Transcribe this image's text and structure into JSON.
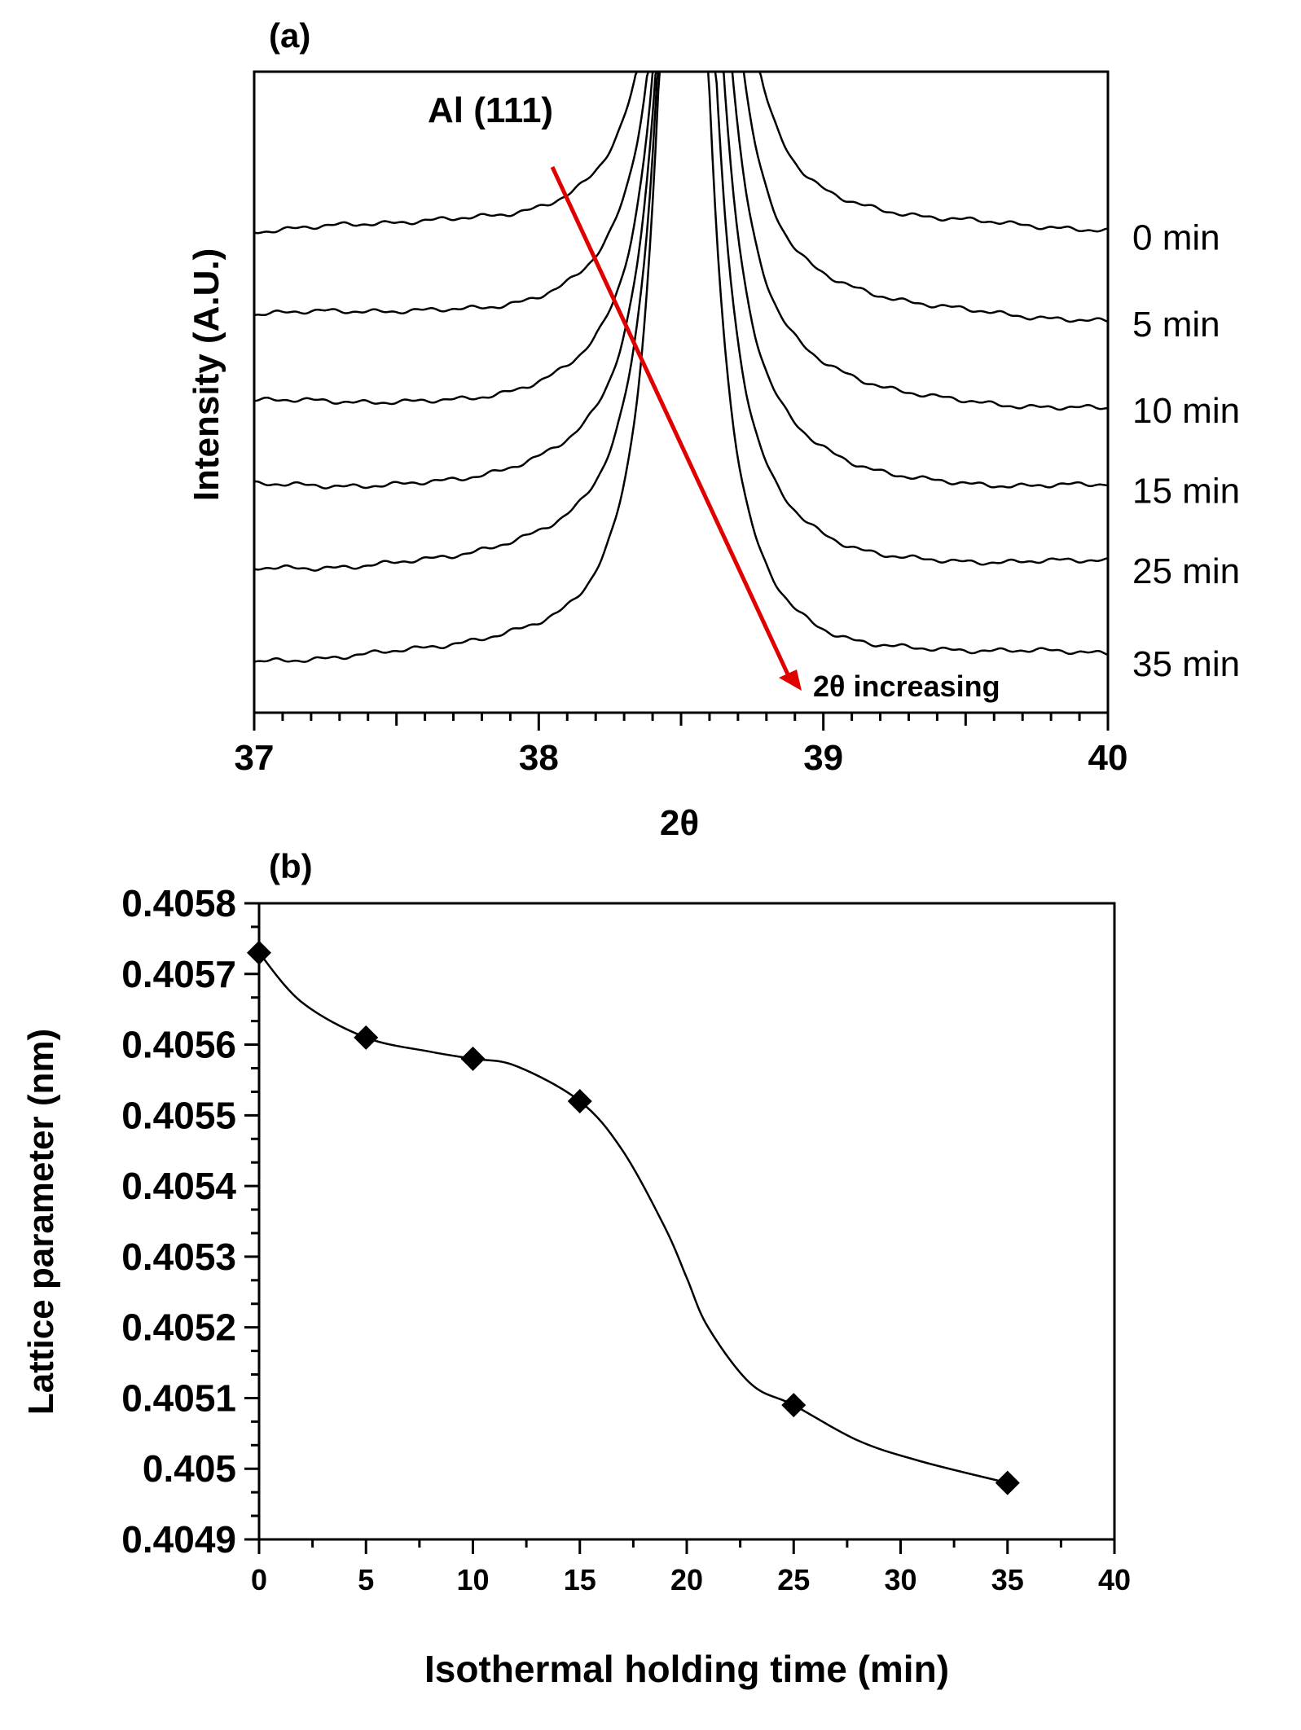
{
  "chart_data": [
    {
      "type": "line",
      "panel_label": "(a)",
      "title": "",
      "xlabel": "2θ",
      "ylabel": "Intensity (A.U.)",
      "xlim": [
        37,
        40
      ],
      "x_ticks": [
        "37",
        "38",
        "39",
        "40"
      ],
      "peak_label": "Al (111)",
      "arrow_label": "2θ increasing",
      "arrow_color": "#e00000",
      "line_color": "#000000",
      "series": [
        {
          "name": "0 min",
          "baseline": 0.745,
          "peak_center": 38.56,
          "peak_halfwidth": 0.09
        },
        {
          "name": "5 min",
          "baseline": 0.61,
          "peak_center": 38.55,
          "peak_halfwidth": 0.09
        },
        {
          "name": "10 min",
          "baseline": 0.475,
          "peak_center": 38.54,
          "peak_halfwidth": 0.09
        },
        {
          "name": "15 min",
          "baseline": 0.35,
          "peak_center": 38.53,
          "peak_halfwidth": 0.09
        },
        {
          "name": "25 min",
          "baseline": 0.225,
          "peak_center": 38.52,
          "peak_halfwidth": 0.09
        },
        {
          "name": "35 min",
          "baseline": 0.08,
          "peak_center": 38.51,
          "peak_halfwidth": 0.09
        }
      ]
    },
    {
      "type": "scatter",
      "panel_label": "(b)",
      "title": "",
      "xlabel": "Isothermal holding time (min)",
      "ylabel": "Lattice parameter (nm)",
      "xlim": [
        0,
        40
      ],
      "ylim": [
        0.4049,
        0.4058
      ],
      "x_ticks": [
        "0",
        "5",
        "10",
        "15",
        "20",
        "25",
        "30",
        "35",
        "40"
      ],
      "y_ticks": [
        "0.4049",
        "0.405",
        "0.4051",
        "0.4052",
        "0.4053",
        "0.4054",
        "0.4055",
        "0.4056",
        "0.4057",
        "0.4058"
      ],
      "x": [
        0,
        5,
        10,
        15,
        25,
        35
      ],
      "values": [
        0.40573,
        0.40561,
        0.40558,
        0.40552,
        0.40509,
        0.40498
      ],
      "fit_curve": {
        "x": [
          0,
          2,
          5,
          8,
          10,
          12,
          15,
          17,
          19,
          20,
          21,
          23,
          25,
          28,
          31,
          35
        ],
        "y": [
          0.40573,
          0.40566,
          0.40561,
          0.40559,
          0.40558,
          0.40557,
          0.40552,
          0.40545,
          0.40534,
          0.40527,
          0.4052,
          0.40512,
          0.40509,
          0.40504,
          0.40501,
          0.40498
        ]
      },
      "marker": "diamond",
      "color": "#000000"
    }
  ]
}
